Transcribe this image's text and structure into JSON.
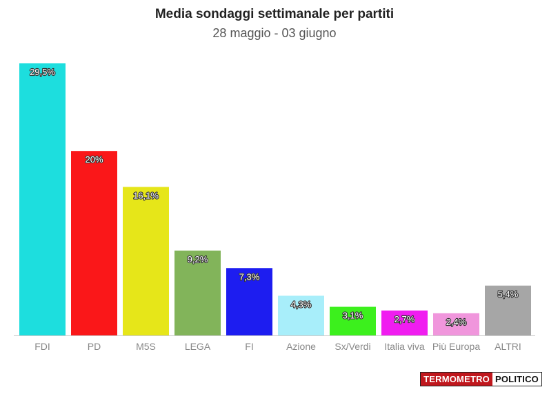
{
  "chart_data": {
    "type": "bar",
    "title": "Media sondaggi settimanale per partiti",
    "subtitle": "28 maggio - 03 giugno",
    "categories": [
      "FDI",
      "PD",
      "M5S",
      "LEGA",
      "FI",
      "Azione",
      "Sx/Verdi",
      "Italia viva",
      "Più Europa",
      "ALTRI"
    ],
    "values": [
      29.5,
      20,
      16.1,
      9.2,
      7.3,
      4.3,
      3.1,
      2.7,
      2.4,
      5.4
    ],
    "data_labels": [
      "29,5%",
      "20%",
      "16,1%",
      "9,2%",
      "7,3%",
      "4,3%",
      "3,1%",
      "2,7%",
      "2,4%",
      "5,4%"
    ],
    "colors": [
      "#1ddede",
      "#fa1719",
      "#e6e619",
      "#82b45a",
      "#1d1df0",
      "#a8eefa",
      "#3cf01d",
      "#f01df0",
      "#f096dc",
      "#a6a6a6"
    ],
    "ylim": [
      0,
      29.5
    ],
    "grid": false,
    "legend": "none"
  },
  "branding": {
    "logo_part1": "TERMOMETRO",
    "logo_part2": "POLITICO"
  }
}
